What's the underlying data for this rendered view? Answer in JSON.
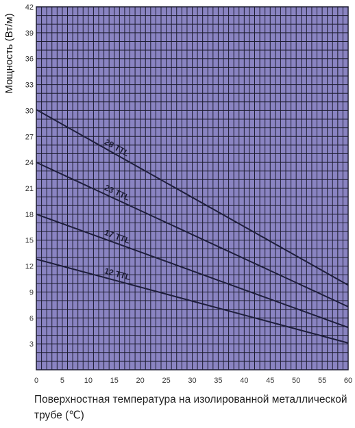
{
  "chart_data": {
    "type": "line",
    "ylabel": "Мощность (Вт/м)",
    "xlabel": "Поверхностная температура на изолированной металлической трубе (℃)",
    "xlim": [
      0,
      60
    ],
    "ylim": [
      0,
      42
    ],
    "xticks": [
      0,
      5,
      10,
      15,
      20,
      25,
      30,
      35,
      40,
      45,
      50,
      55,
      60
    ],
    "yticks": [
      3,
      6,
      9,
      12,
      15,
      18,
      21,
      24,
      27,
      30,
      33,
      36,
      39,
      42
    ],
    "grid": true,
    "colors": {
      "background": "#8a84c2",
      "grid": "#1c1c30",
      "line": "#1e1e3c"
    },
    "series": [
      {
        "name": "28 TTL",
        "x": [
          0,
          60
        ],
        "y": [
          30.1,
          9.8
        ]
      },
      {
        "name": "23 TTL",
        "x": [
          0,
          60
        ],
        "y": [
          24.0,
          7.3
        ]
      },
      {
        "name": "17 TTL",
        "x": [
          0,
          60
        ],
        "y": [
          18.0,
          4.9
        ]
      },
      {
        "name": "12 TTL",
        "x": [
          0,
          60
        ],
        "y": [
          12.8,
          3.1
        ]
      }
    ]
  }
}
